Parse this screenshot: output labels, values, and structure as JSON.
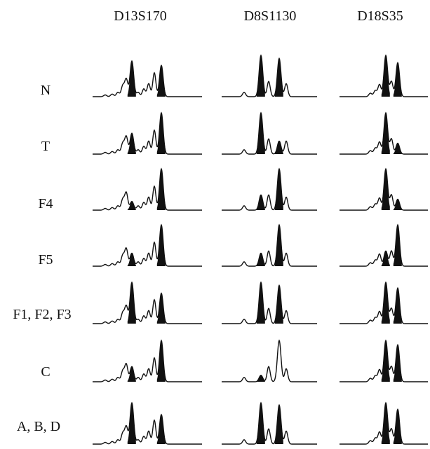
{
  "columns": [
    {
      "label": "D13S170",
      "type": "d13"
    },
    {
      "label": "D8S1130",
      "type": "d8"
    },
    {
      "label": "D18S35",
      "type": "d18"
    }
  ],
  "rows": [
    {
      "label": "N",
      "peaks": {
        "d13": {
          "a": 0.82,
          "b": 0.72,
          "filled": [
            1,
            1
          ]
        },
        "d8": {
          "a": 0.95,
          "b": 0.88,
          "filled": [
            1,
            1
          ]
        },
        "d18": {
          "a": 0.95,
          "b": 0.78,
          "filled": [
            1,
            1
          ]
        }
      }
    },
    {
      "label": "T",
      "peaks": {
        "d13": {
          "a": 0.48,
          "b": 0.95,
          "filled": [
            1,
            1
          ]
        },
        "d8": {
          "a": 0.95,
          "b": 0.3,
          "filled": [
            1,
            1
          ]
        },
        "d18": {
          "a": 0.95,
          "b": 0.25,
          "filled": [
            1,
            1
          ]
        }
      }
    },
    {
      "label": "F4",
      "peaks": {
        "d13": {
          "a": 0.2,
          "b": 0.95,
          "filled": [
            1,
            1
          ]
        },
        "d8": {
          "a": 0.35,
          "b": 0.95,
          "filled": [
            1,
            1
          ]
        },
        "d18": {
          "a": 0.95,
          "b": 0.25,
          "filled": [
            1,
            1
          ]
        }
      }
    },
    {
      "label": "F5",
      "peaks": {
        "d13": {
          "a": 0.3,
          "b": 0.95,
          "filled": [
            1,
            1
          ]
        },
        "d8": {
          "a": 0.3,
          "b": 0.95,
          "filled": [
            1,
            1
          ]
        },
        "d18": {
          "a": 0.35,
          "b": 0.95,
          "filled": [
            1,
            1
          ]
        }
      }
    },
    {
      "label": "F1, F2, F3",
      "peaks": {
        "d13": {
          "a": 0.95,
          "b": 0.7,
          "filled": [
            1,
            1
          ]
        },
        "d8": {
          "a": 0.95,
          "b": 0.88,
          "filled": [
            1,
            1
          ]
        },
        "d18": {
          "a": 0.95,
          "b": 0.82,
          "filled": [
            1,
            1
          ]
        }
      }
    },
    {
      "label": "C",
      "peaks": {
        "d13": {
          "a": 0.35,
          "b": 0.95,
          "filled": [
            1,
            1
          ]
        },
        "d8": {
          "a": 0.15,
          "b": 0.95,
          "filled": [
            1,
            0
          ]
        },
        "d18": {
          "a": 0.95,
          "b": 0.85,
          "filled": [
            1,
            1
          ]
        }
      }
    },
    {
      "label": "A, B, D",
      "peaks": {
        "d13": {
          "a": 0.95,
          "b": 0.68,
          "filled": [
            1,
            1
          ]
        },
        "d8": {
          "a": 0.95,
          "b": 0.9,
          "filled": [
            1,
            1
          ]
        },
        "d18": {
          "a": 0.95,
          "b": 0.8,
          "filled": [
            1,
            1
          ]
        }
      }
    }
  ]
}
